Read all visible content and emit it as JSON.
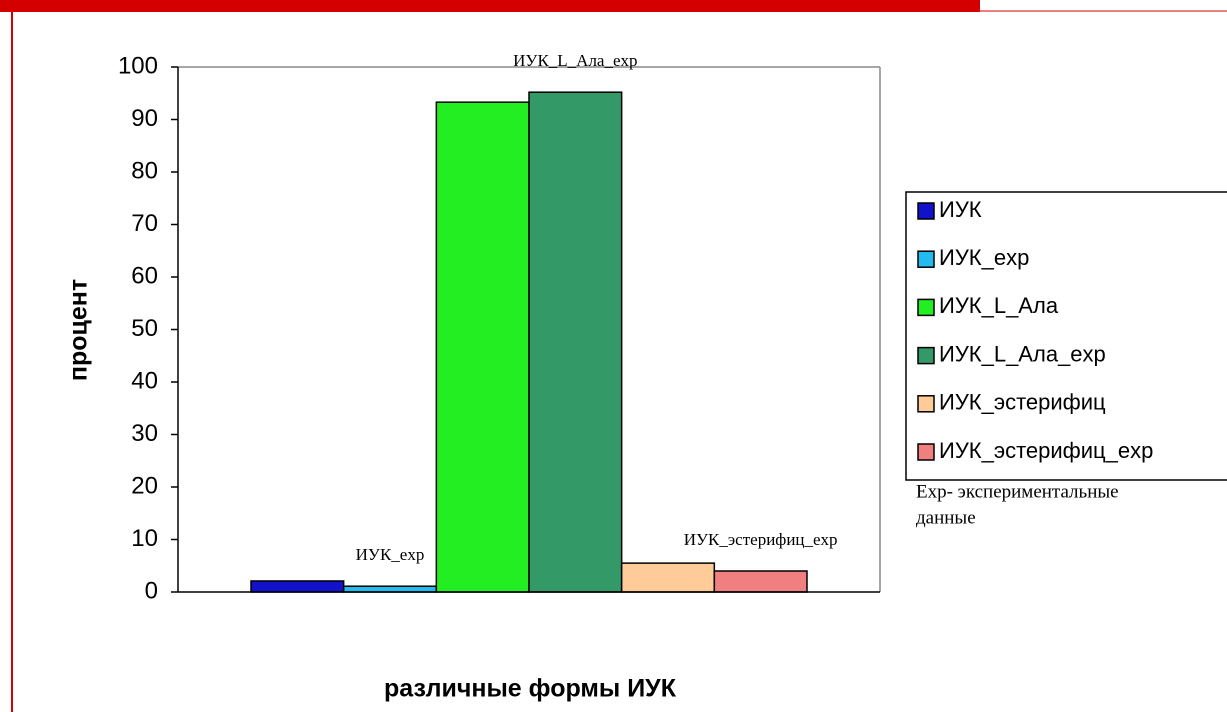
{
  "chart_data": {
    "type": "bar",
    "y_label": "процент",
    "x_label": "различные формы ИУК",
    "categories": [
      null
    ],
    "series": [
      {
        "name": "ИУК",
        "color": "#1212cc",
        "values": [
          2.1
        ]
      },
      {
        "name": "ИУК_exp",
        "color": "#22bbee",
        "values": [
          1.1
        ]
      },
      {
        "name": "ИУК_L_Ала",
        "color": "#22ee22",
        "values": [
          93.3
        ]
      },
      {
        "name": "ИУК_L_Ала_exp",
        "color": "#339966",
        "values": [
          95.2
        ]
      },
      {
        "name": "ИУК_эстерифиц",
        "color": "#ffcc99",
        "values": [
          5.5
        ]
      },
      {
        "name": "ИУК_эстерифиц_exp",
        "color": "#f08080",
        "values": [
          4
        ]
      }
    ],
    "annotations": [
      "ИУК_L_Ала_exp",
      "ИУК_exp",
      "ИУК_эстерифиц_exp"
    ],
    "note": [
      "Exp- экспериментальные",
      "данные"
    ],
    "ylim": [
      0,
      100
    ],
    "yticks": [
      0,
      10,
      20,
      30,
      40,
      50,
      60,
      70,
      80,
      90,
      100
    ],
    "legend": "right"
  }
}
